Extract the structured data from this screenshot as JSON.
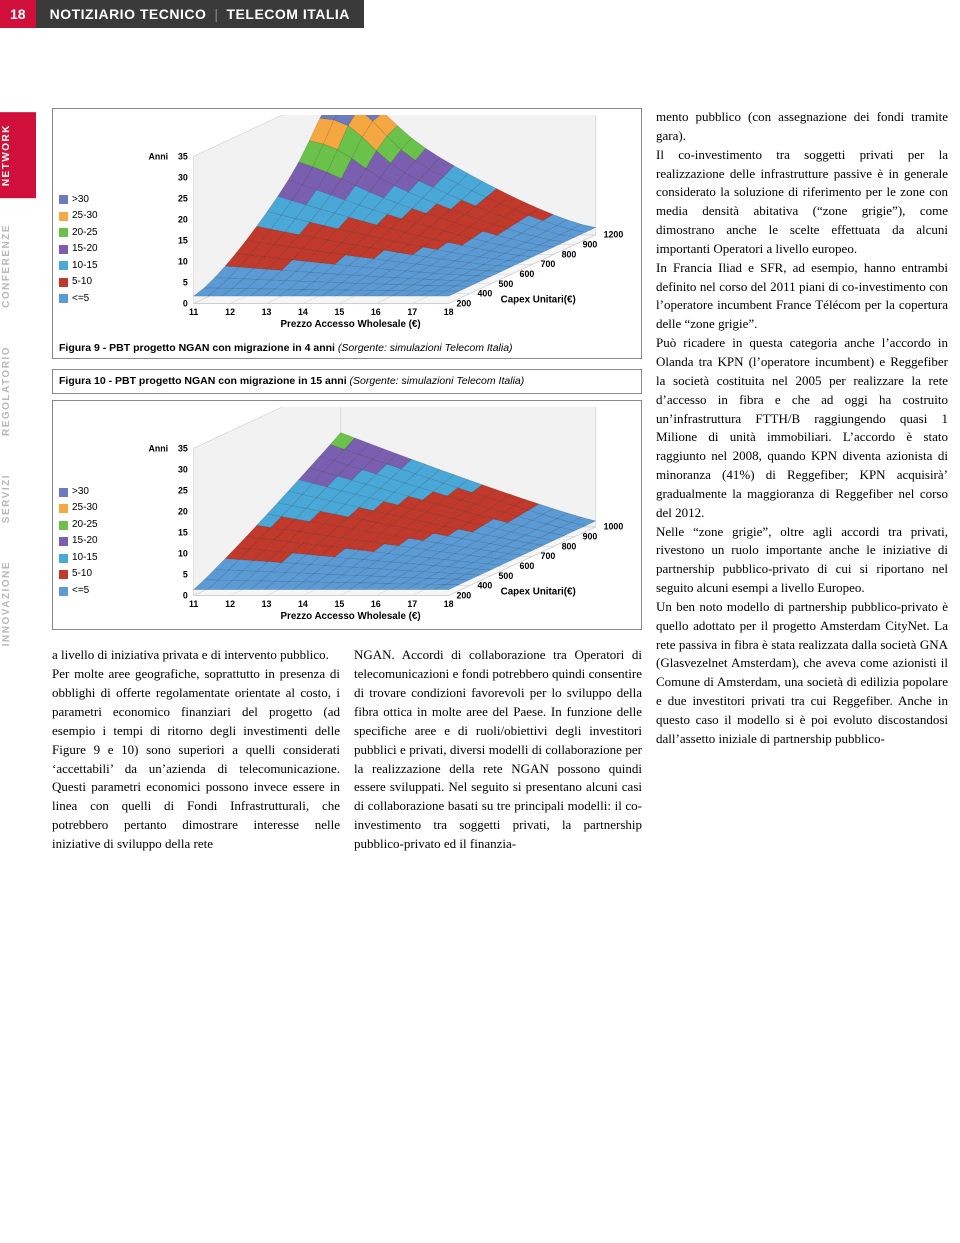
{
  "header": {
    "page_number": "18",
    "title_a": "NOTIZIARIO TECNICO",
    "title_b": "TELECOM ITALIA",
    "bg_a": "#3a3a3a",
    "bg_page": "#d0103a"
  },
  "side_tabs": [
    {
      "label": "NETWORK",
      "active": true
    },
    {
      "label": "CONFERENZE",
      "active": false
    },
    {
      "label": "REGOLATORIO",
      "active": false
    },
    {
      "label": "SERVIZI",
      "active": false
    },
    {
      "label": "INNOVAZIONE",
      "active": false
    }
  ],
  "legend": {
    "items": [
      {
        "label": ">30",
        "color": "#6a7bbf"
      },
      {
        "label": "25-30",
        "color": "#f5a742"
      },
      {
        "label": "20-25",
        "color": "#6bc24a"
      },
      {
        "label": "15-20",
        "color": "#7a5fb0"
      },
      {
        "label": "10-15",
        "color": "#4aa8d8"
      },
      {
        "label": "5-10",
        "color": "#c0392b"
      },
      {
        "label": "<=5",
        "color": "#5b9bd5"
      }
    ]
  },
  "figure9": {
    "caption_prefix": "Figura 9 - PBT progetto NGAN con migrazione in 4 anni",
    "caption_source": "(Sorgente: simulazioni Telecom Italia)",
    "z_label_prefix": "Anni",
    "z_ticks": [
      "35",
      "30",
      "25",
      "20",
      "15",
      "10",
      "5",
      "0"
    ],
    "x_label": "Prezzo Accesso Wholesale (€)",
    "x_ticks": [
      "11",
      "12",
      "13",
      "14",
      "15",
      "16",
      "17",
      "18"
    ],
    "y_label": "Capex Unitari(€)",
    "y_ticks": [
      "200",
      "400",
      "500",
      "600",
      "700",
      "800",
      "900",
      "1200"
    ],
    "band_colors_top_to_bottom": [
      "#6a7bbf",
      "#f5a742",
      "#6bc24a",
      "#7a5fb0",
      "#4aa8d8",
      "#c0392b",
      "#5b9bd5"
    ],
    "background_color": "#ffffff"
  },
  "figure10": {
    "caption_prefix": "Figura 10 - PBT progetto NGAN con migrazione in 15 anni",
    "caption_source": "(Sorgente: simulazioni Telecom Italia)",
    "z_label_prefix": "Anni",
    "z_ticks": [
      "35",
      "30",
      "25",
      "20",
      "15",
      "10",
      "5",
      "0"
    ],
    "x_label": "Prezzo Accesso Wholesale (€)",
    "x_ticks": [
      "11",
      "12",
      "13",
      "14",
      "15",
      "16",
      "17",
      "18"
    ],
    "y_label": "Capex Unitari(€)",
    "y_ticks": [
      "200",
      "400",
      "500",
      "600",
      "700",
      "800",
      "900",
      "1000"
    ],
    "band_colors_top_to_bottom": [
      "#6a7bbf",
      "#f5a742",
      "#6bc24a",
      "#7a5fb0",
      "#4aa8d8",
      "#c0392b",
      "#5b9bd5"
    ],
    "background_color": "#ffffff"
  },
  "body_text": {
    "col_left": "a livello di iniziativa privata e di intervento pubblico.\nPer molte aree geografiche, soprattutto in presenza di obblighi di offerte regolamentate orientate al costo, i parametri economico finanziari del progetto (ad esempio i tempi di ritorno degli investimenti delle Figure 9 e 10) sono superiori a quelli considerati ‘accettabili’ da un’azienda di telecomunicazione. Questi parametri economici possono invece essere in linea con quelli di Fondi Infrastrutturali, che potrebbero pertanto dimostrare interesse nelle iniziative di sviluppo della rete",
    "col_middle": "NGAN. Accordi di collaborazione tra Operatori di telecomunicazioni e fondi potrebbero quindi consentire di trovare condizioni favorevoli per lo sviluppo della fibra ottica in molte aree del Paese. In funzione delle specifiche aree e di ruoli/obiettivi degli investitori pubblici e privati, diversi modelli di collaborazione per la realizzazione della rete NGAN possono quindi essere sviluppati. Nel seguito si presentano alcuni casi di collaborazione basati su tre principali modelli: il co-investimento tra soggetti privati, la partnership pubblico-privato ed il finanzia-",
    "col_right": "mento pubblico (con assegnazione dei fondi tramite gara).\nIl co-investimento tra soggetti privati per la realizzazione delle infrastrutture passive è in generale considerato la soluzione di riferimento per le zone con media densità abitativa (“zone grigie”), come dimostrano anche le scelte effettuata da alcuni importanti Operatori a livello europeo.\nIn Francia Iliad e SFR, ad esempio, hanno entrambi definito nel corso del 2011 piani di co-investimento con l’operatore incumbent France Télécom per la copertura delle “zone grigie”.\nPuò ricadere in questa categoria anche l’accordo in Olanda tra KPN (l’operatore incumbent) e Reggefiber la società costituita nel 2005 per realizzare la rete d’accesso in fibra e che ad oggi ha costruito un’infrastruttura FTTH/B raggiungendo quasi 1 Milione di unità immobiliari. L’accordo è stato raggiunto nel 2008, quando KPN diventa azionista di minoranza (41%) di Reggefiber; KPN acquisirà’ gradualmente la maggioranza di Reggefiber nel corso del 2012.\nNelle “zone grigie”, oltre agli accordi tra privati, rivestono un ruolo importante anche le iniziative di partnership pubblico-privato di cui si riportano nel seguito alcuni esempi a livello Europeo.\nUn ben noto modello di partnership pubblico-privato è quello adottato per il progetto Amsterdam CityNet. La rete passiva in fibra è stata realizzata dalla società GNA (Glasvezelnet Amsterdam), che aveva come azionisti il Comune di Amsterdam, una società di edilizia popolare e due investitori privati tra cui Reggefiber. Anche in questo caso il modello si è poi evoluto discostandosi dall’assetto iniziale di partnership pubblico-"
  }
}
